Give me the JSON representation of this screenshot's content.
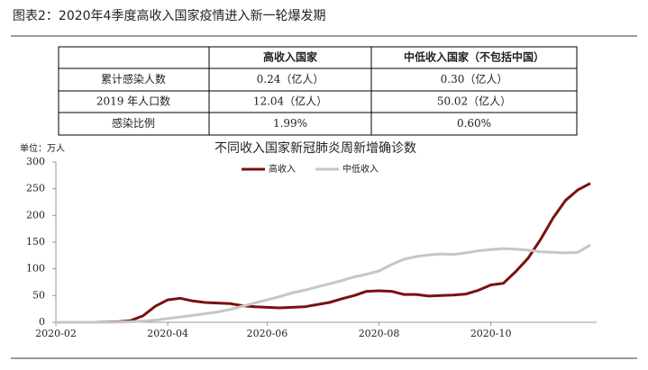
{
  "header": {
    "title": "图表2：2020年4季度高收入国家疫情进入新一轮爆发期"
  },
  "table": {
    "columns": [
      "高收入国家",
      "中低收入国家（不包括中国）"
    ],
    "rows": [
      [
        "累计感染人数",
        "0.24（亿人）",
        "0.30（亿人）"
      ],
      [
        "2019 年人口数",
        "12.04（亿人）",
        "50.02（亿人）"
      ],
      [
        "感染比例",
        "1.99%",
        "0.60%"
      ]
    ]
  },
  "chart_data": {
    "type": "line",
    "title": "不同收入国家新冠肺炎周新增确诊数",
    "y_unit": "单位：万人",
    "categories": [
      "2020-02",
      null,
      null,
      null,
      null,
      null,
      null,
      null,
      null,
      "2020-04",
      null,
      null,
      null,
      null,
      null,
      null,
      null,
      "2020-06",
      null,
      null,
      null,
      null,
      null,
      null,
      null,
      null,
      "2020-08",
      null,
      null,
      null,
      null,
      null,
      null,
      null,
      null,
      "2020-10",
      null,
      null,
      null,
      null,
      null,
      null,
      null,
      null
    ],
    "series": [
      {
        "name": "高收入",
        "color": "#7b1010",
        "values": [
          0,
          0,
          0,
          0,
          0.5,
          1,
          3,
          12,
          30,
          42,
          45,
          40,
          37,
          36,
          35,
          31,
          29,
          28,
          27,
          28,
          29,
          33,
          37,
          44,
          50,
          58,
          59,
          58,
          52,
          52,
          49,
          50,
          51,
          53,
          60,
          70,
          73,
          95,
          120,
          155,
          195,
          228,
          248,
          260
        ]
      },
      {
        "name": "中低收入",
        "color": "#c6c6c6",
        "values": [
          0,
          0,
          0,
          0,
          0,
          0.3,
          1,
          2,
          4,
          7,
          10,
          13,
          16,
          19,
          24,
          30,
          36,
          42,
          48,
          55,
          60,
          66,
          72,
          78,
          85,
          90,
          96,
          108,
          118,
          123,
          126,
          128,
          127,
          130,
          134,
          136,
          138,
          137,
          135,
          132,
          131,
          130,
          131,
          145
        ]
      }
    ],
    "ylim": [
      0,
      300
    ],
    "yticks": [
      0,
      50,
      100,
      150,
      200,
      250,
      300
    ],
    "grid": false,
    "legend": "top"
  }
}
